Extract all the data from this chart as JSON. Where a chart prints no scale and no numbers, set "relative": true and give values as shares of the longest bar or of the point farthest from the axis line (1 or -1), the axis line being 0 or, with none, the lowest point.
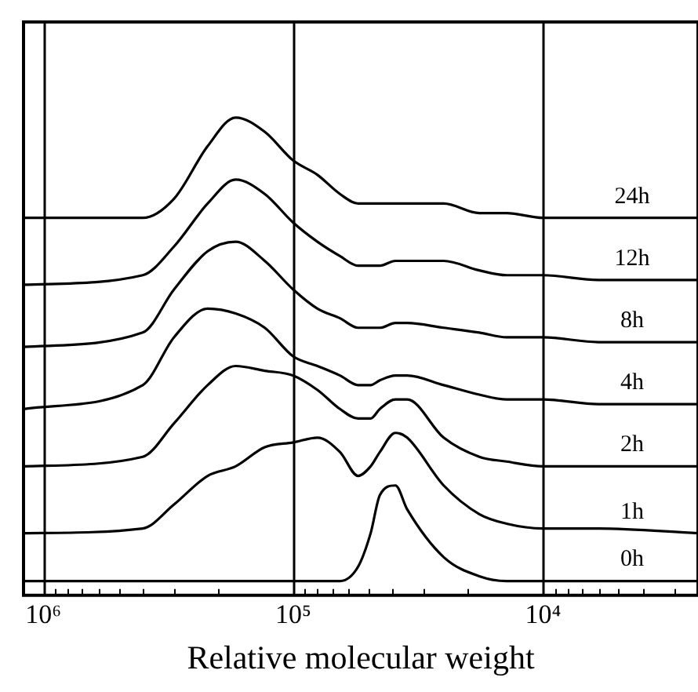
{
  "chart_data": {
    "type": "line",
    "relative": true,
    "xlabel": "Relative molecular weight",
    "log": "x",
    "grid": "x",
    "legend": false,
    "marker": "none",
    "line_style": "solid",
    "x": [
      1200000,
      400000,
      300000,
      220000,
      170000,
      130000,
      100000,
      80000,
      65000,
      55000,
      49000,
      45000,
      39000,
      35000,
      25000,
      18000,
      14000,
      10000,
      6000,
      2400
    ],
    "xlim": [
      1200000,
      2400
    ],
    "xticks": [
      {
        "value": 1000000,
        "label": "10⁶"
      },
      {
        "value": 900000,
        "label": null
      },
      {
        "value": 800000,
        "label": null
      },
      {
        "value": 700000,
        "label": null
      },
      {
        "value": 600000,
        "label": null
      },
      {
        "value": 500000,
        "label": null
      },
      {
        "value": 400000,
        "label": null
      },
      {
        "value": 300000,
        "label": null
      },
      {
        "value": 200000,
        "label": null
      },
      {
        "value": 100000,
        "label": "10⁵"
      },
      {
        "value": 90000,
        "label": null
      },
      {
        "value": 80000,
        "label": null
      },
      {
        "value": 70000,
        "label": null
      },
      {
        "value": 60000,
        "label": null
      },
      {
        "value": 50000,
        "label": null
      },
      {
        "value": 40000,
        "label": null
      },
      {
        "value": 30000,
        "label": null
      },
      {
        "value": 20000,
        "label": null
      },
      {
        "value": 10000,
        "label": "10⁴"
      },
      {
        "value": 9000,
        "label": null
      },
      {
        "value": 8000,
        "label": null
      },
      {
        "value": 7000,
        "label": null
      },
      {
        "value": 6000,
        "label": null
      },
      {
        "value": 5000,
        "label": null
      },
      {
        "value": 4000,
        "label": null
      },
      {
        "value": 3000,
        "label": null
      }
    ],
    "series": [
      {
        "name": "24h",
        "color": "#000000",
        "values": [
          0.79,
          0.79,
          0.83,
          0.94,
          1,
          0.97,
          0.91,
          0.88,
          0.84,
          0.82,
          0.82,
          0.82,
          0.82,
          0.82,
          0.82,
          0.8,
          0.8,
          0.79,
          0.79,
          0.79
        ]
      },
      {
        "name": "12h",
        "color": "#000000",
        "values": [
          0.65,
          0.67,
          0.73,
          0.82,
          0.87,
          0.84,
          0.78,
          0.74,
          0.71,
          0.69,
          0.69,
          0.69,
          0.7,
          0.7,
          0.7,
          0.68,
          0.67,
          0.67,
          0.66,
          0.66
        ]
      },
      {
        "name": "8h",
        "color": "#000000",
        "values": [
          0.52,
          0.55,
          0.64,
          0.72,
          0.74,
          0.7,
          0.64,
          0.6,
          0.58,
          0.56,
          0.56,
          0.56,
          0.57,
          0.57,
          0.56,
          0.55,
          0.54,
          0.54,
          0.53,
          0.53
        ]
      },
      {
        "name": "4h",
        "color": "#000000",
        "values": [
          0.39,
          0.44,
          0.54,
          0.6,
          0.59,
          0.56,
          0.5,
          0.48,
          0.46,
          0.44,
          0.44,
          0.45,
          0.46,
          0.46,
          0.44,
          0.42,
          0.41,
          0.41,
          0.4,
          0.4
        ]
      },
      {
        "name": "2h",
        "color": "#000000",
        "values": [
          0.27,
          0.29,
          0.36,
          0.44,
          0.48,
          0.47,
          0.46,
          0.43,
          0.39,
          0.37,
          0.37,
          0.39,
          0.41,
          0.41,
          0.33,
          0.29,
          0.28,
          0.27,
          0.27,
          0.27
        ]
      },
      {
        "name": "1h",
        "color": "#000000",
        "values": [
          0.13,
          0.14,
          0.19,
          0.25,
          0.27,
          0.31,
          0.32,
          0.33,
          0.3,
          0.25,
          0.27,
          0.3,
          0.34,
          0.33,
          0.23,
          0.17,
          0.15,
          0.14,
          0.14,
          0.13
        ]
      },
      {
        "name": "0h",
        "color": "#000000",
        "values": [
          0.03,
          0.03,
          0.03,
          0.03,
          0.03,
          0.03,
          0.03,
          0.03,
          0.03,
          0.06,
          0.13,
          0.21,
          0.23,
          0.18,
          0.08,
          0.04,
          0.03,
          0.03,
          0.03,
          0.03
        ]
      }
    ]
  }
}
